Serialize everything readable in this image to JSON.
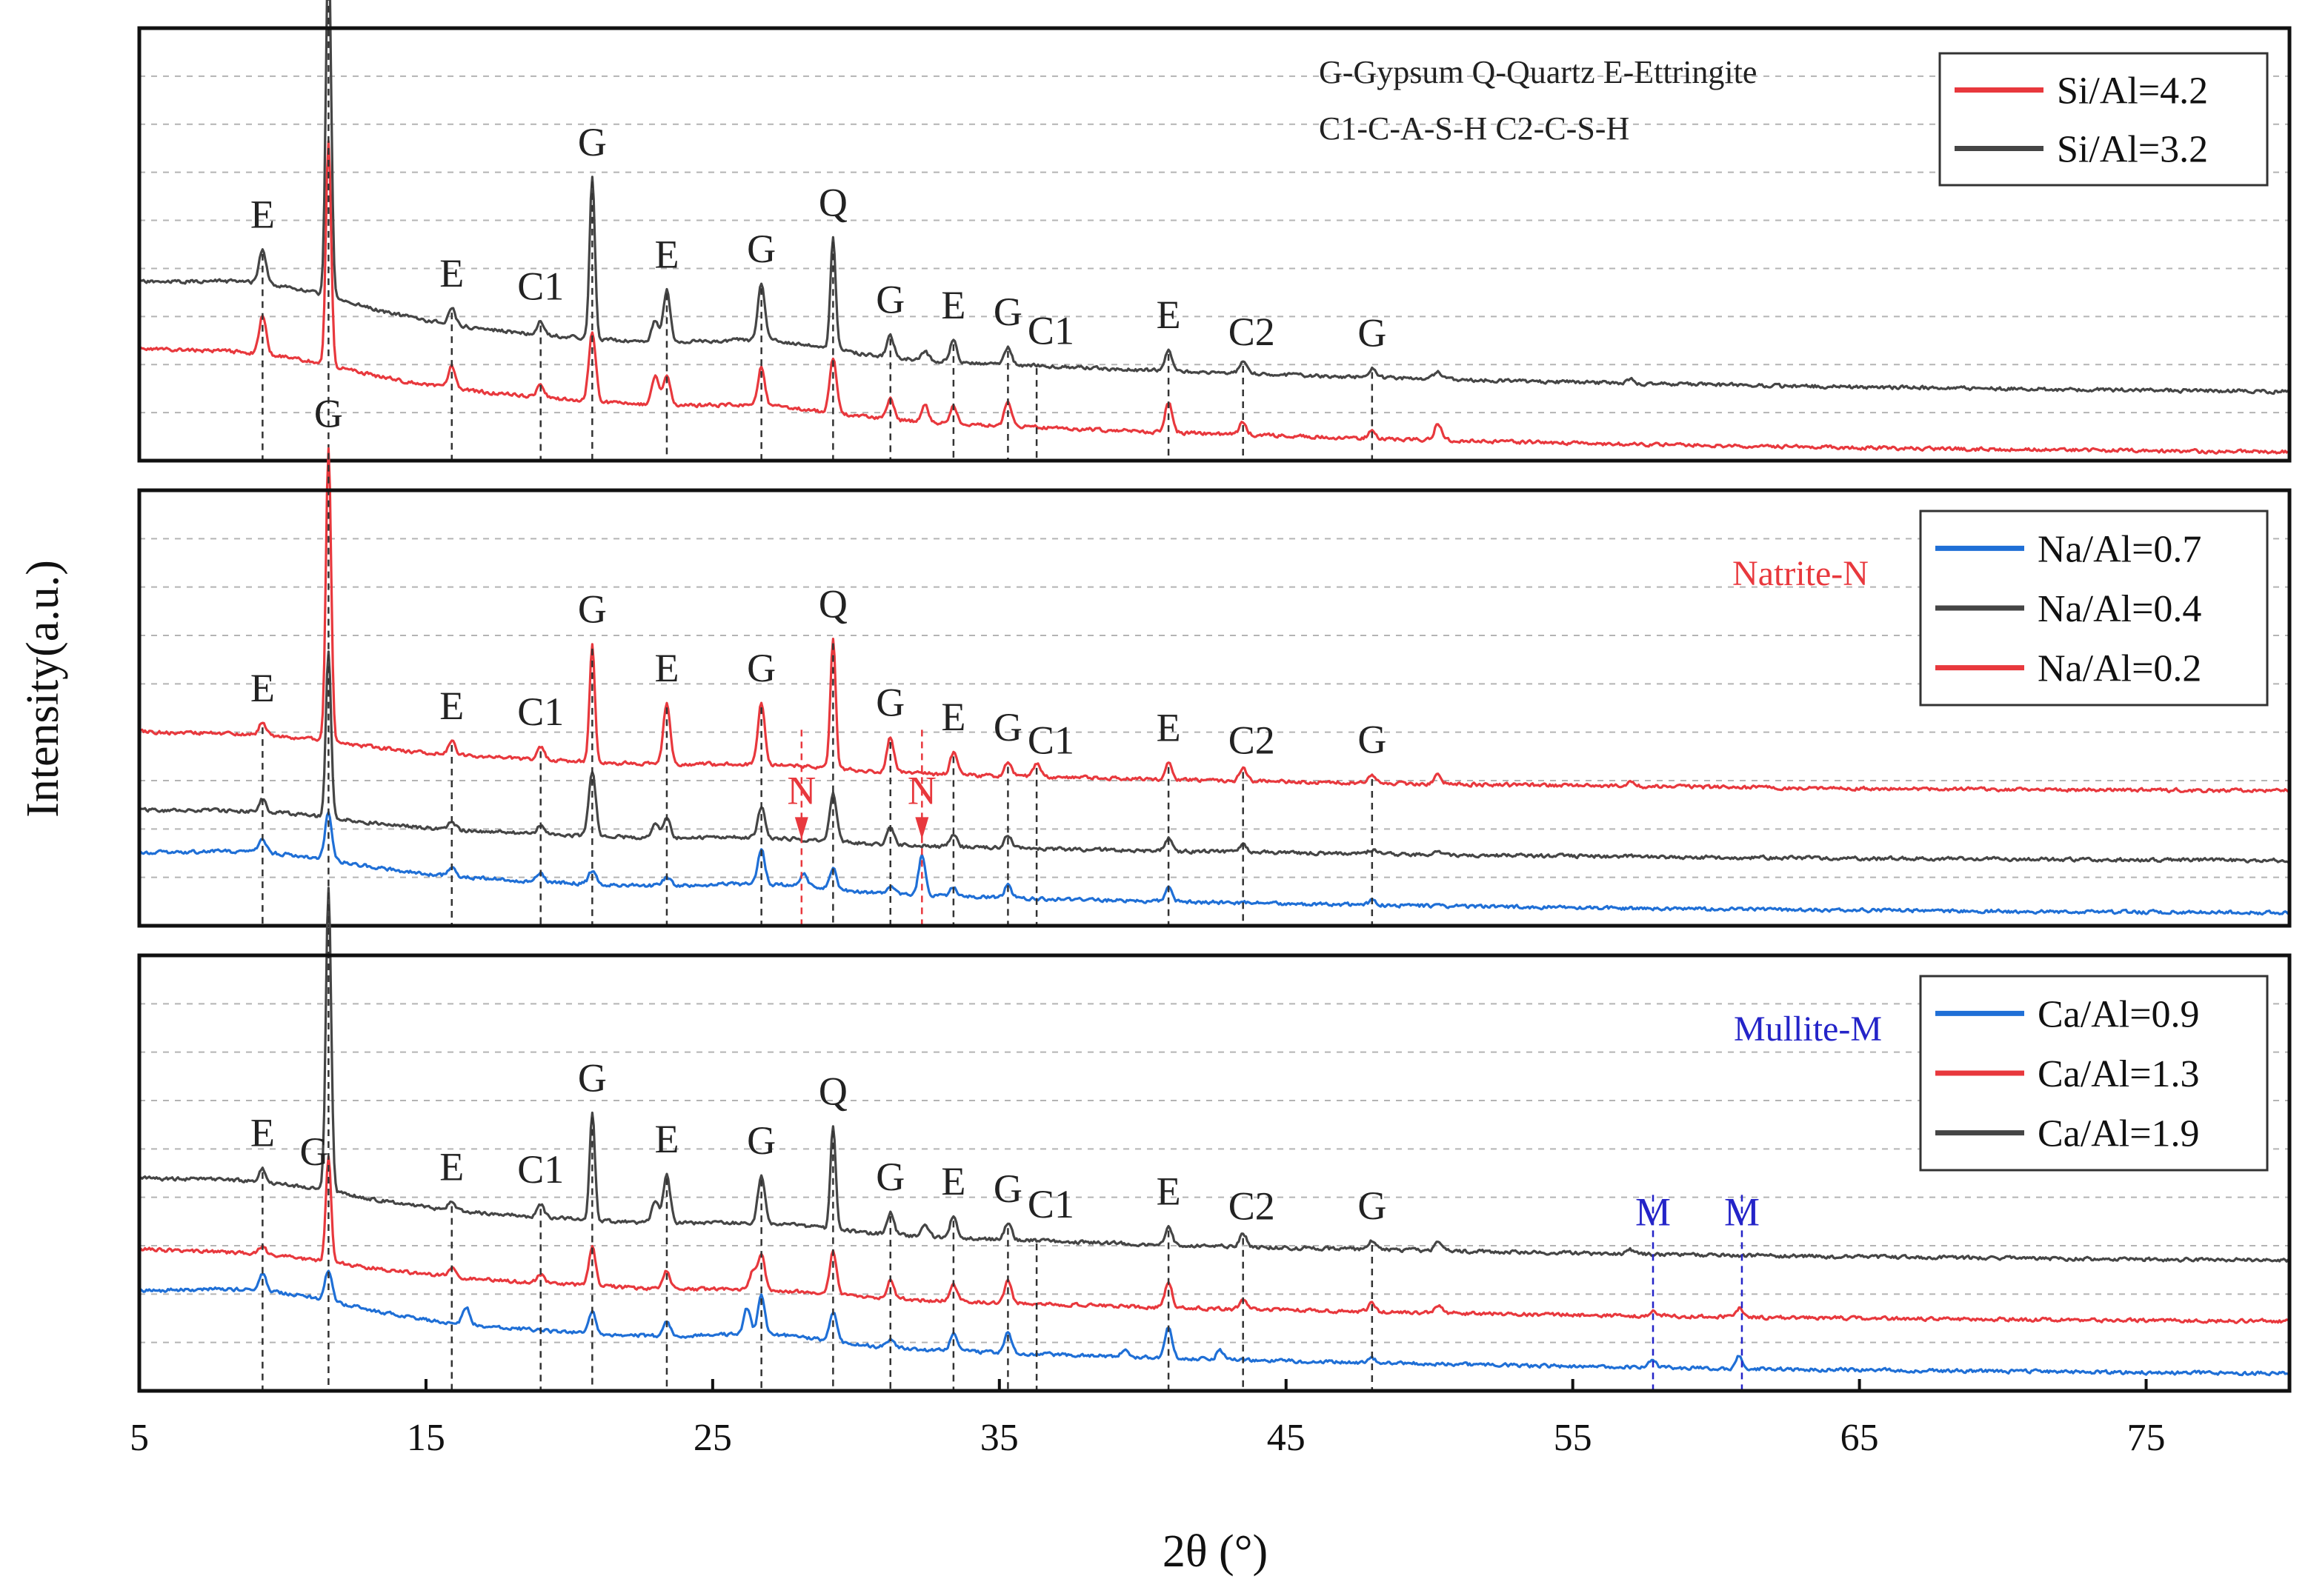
{
  "chart_data": {
    "type": "line",
    "x_axis": {
      "label": "2θ (°)",
      "range": [
        5,
        80
      ],
      "tick_labels": [
        "5",
        "15",
        "25",
        "35",
        "45",
        "55",
        "65",
        "75"
      ]
    },
    "y_axis_label": "Intensity(a.u.)",
    "colors": {
      "red": "#e8383d",
      "dark": "#454545",
      "blue": "#1f6fd6",
      "mullite": "#2424c8",
      "natrite": "#e8383d"
    },
    "panels": [
      {
        "id": "si-al",
        "notes": [
          "G-Gypsum Q-Quartz E-Ettringite",
          "C1-C-A-S-H C2-C-S-H"
        ],
        "legend": [
          {
            "label": "Si/Al=4.2",
            "color": "#e8383d"
          },
          {
            "label": "Si/Al=3.2",
            "color": "#454545"
          }
        ],
        "series": [
          {
            "name": "Si/Al=3.2",
            "color": "#454545",
            "start": 0.6,
            "end": 0.84,
            "hump": 0.05,
            "amp": 1.0,
            "seed": 11,
            "peaks": [
              [
                9.3,
                0.08
              ],
              [
                11.6,
                0.82
              ],
              [
                15.9,
                0.04
              ],
              [
                19.0,
                0.03
              ],
              [
                20.8,
                0.37
              ],
              [
                23.0,
                0.05
              ],
              [
                23.4,
                0.12
              ],
              [
                26.7,
                0.13
              ],
              [
                29.2,
                0.26
              ],
              [
                31.2,
                0.05
              ],
              [
                32.4,
                0.02
              ],
              [
                33.4,
                0.05
              ],
              [
                35.3,
                0.04
              ],
              [
                40.9,
                0.05
              ],
              [
                43.5,
                0.03
              ],
              [
                48.0,
                0.02
              ],
              [
                50.3,
                0.02
              ],
              [
                57.0,
                0.01
              ]
            ]
          },
          {
            "name": "Si/Al=4.2",
            "color": "#e8383d",
            "start": 0.75,
            "end": 0.98,
            "hump": 0.035,
            "amp": 1.0,
            "seed": 23,
            "peaks": [
              [
                9.3,
                0.09
              ],
              [
                11.6,
                0.52
              ],
              [
                15.9,
                0.05
              ],
              [
                19.0,
                0.03
              ],
              [
                20.8,
                0.16
              ],
              [
                23.0,
                0.07
              ],
              [
                23.4,
                0.07
              ],
              [
                26.7,
                0.09
              ],
              [
                29.2,
                0.13
              ],
              [
                31.2,
                0.05
              ],
              [
                32.4,
                0.04
              ],
              [
                33.4,
                0.04
              ],
              [
                35.3,
                0.06
              ],
              [
                40.9,
                0.07
              ],
              [
                43.5,
                0.03
              ],
              [
                48.0,
                0.02
              ],
              [
                50.3,
                0.04
              ]
            ]
          }
        ],
        "peak_labels": [
          {
            "text": "E",
            "x": 9.3
          },
          {
            "text": "G",
            "x": 11.6
          },
          {
            "text": "E",
            "x": 15.9
          },
          {
            "text": "C1",
            "x": 19.0
          },
          {
            "text": "G",
            "x": 20.8
          },
          {
            "text": "E",
            "x": 23.4
          },
          {
            "text": "G",
            "x": 26.7
          },
          {
            "text": "Q",
            "x": 29.2
          },
          {
            "text": "G",
            "x": 31.2
          },
          {
            "text": "E",
            "x": 33.4
          },
          {
            "text": "G",
            "x": 35.3
          },
          {
            "text": "C1",
            "x": 36.8
          },
          {
            "text": "E",
            "x": 40.9
          },
          {
            "text": "C2",
            "x": 43.8
          },
          {
            "text": "G",
            "x": 48.0
          }
        ],
        "ref_lines": [
          9.3,
          11.6,
          15.9,
          19.0,
          20.8,
          23.4,
          26.7,
          29.2,
          31.2,
          33.4,
          35.3,
          36.3,
          40.9,
          43.5,
          48.0
        ]
      },
      {
        "id": "na-al",
        "notes": [
          "Natrite-N"
        ],
        "legend": [
          {
            "label": "Na/Al=0.7",
            "color": "#1f6fd6"
          },
          {
            "label": "Na/Al=0.4",
            "color": "#454545"
          },
          {
            "label": "Na/Al=0.2",
            "color": "#e8383d"
          }
        ],
        "series": [
          {
            "name": "Na/Al=0.2",
            "color": "#e8383d",
            "start": 0.56,
            "end": 0.69,
            "hump": 0.02,
            "amp": 1.0,
            "seed": 31,
            "peaks": [
              [
                9.3,
                0.03
              ],
              [
                11.6,
                0.67
              ],
              [
                15.9,
                0.03
              ],
              [
                19.0,
                0.03
              ],
              [
                20.8,
                0.27
              ],
              [
                23.4,
                0.14
              ],
              [
                26.7,
                0.14
              ],
              [
                29.2,
                0.3
              ],
              [
                31.2,
                0.08
              ],
              [
                33.4,
                0.05
              ],
              [
                35.3,
                0.03
              ],
              [
                36.3,
                0.03
              ],
              [
                40.9,
                0.04
              ],
              [
                43.5,
                0.03
              ],
              [
                48.0,
                0.02
              ],
              [
                50.3,
                0.02
              ],
              [
                57.0,
                0.01
              ]
            ]
          },
          {
            "name": "Na/Al=0.4",
            "color": "#454545",
            "start": 0.74,
            "end": 0.85,
            "hump": 0.02,
            "amp": 1.0,
            "seed": 43,
            "peaks": [
              [
                9.3,
                0.03
              ],
              [
                11.6,
                0.38
              ],
              [
                15.9,
                0.02
              ],
              [
                19.0,
                0.02
              ],
              [
                20.8,
                0.15
              ],
              [
                23.0,
                0.03
              ],
              [
                23.4,
                0.05
              ],
              [
                26.7,
                0.07
              ],
              [
                29.2,
                0.11
              ],
              [
                31.2,
                0.04
              ],
              [
                33.4,
                0.03
              ],
              [
                35.3,
                0.03
              ],
              [
                40.9,
                0.03
              ],
              [
                43.5,
                0.02
              ],
              [
                48.0,
                0.01
              ],
              [
                50.3,
                0.01
              ]
            ]
          },
          {
            "name": "Na/Al=0.7",
            "color": "#1f6fd6",
            "start": 0.84,
            "end": 0.97,
            "hump": 0.03,
            "amp": 1.0,
            "seed": 57,
            "peaks": [
              [
                9.3,
                0.03
              ],
              [
                11.6,
                0.11
              ],
              [
                15.9,
                0.02
              ],
              [
                19.0,
                0.02
              ],
              [
                20.8,
                0.03
              ],
              [
                23.4,
                0.02
              ],
              [
                26.7,
                0.08
              ],
              [
                28.2,
                0.03
              ],
              [
                29.2,
                0.05
              ],
              [
                31.2,
                0.02
              ],
              [
                32.3,
                0.09
              ],
              [
                33.4,
                0.02
              ],
              [
                35.3,
                0.03
              ],
              [
                40.9,
                0.03
              ],
              [
                48.0,
                0.01
              ]
            ]
          }
        ],
        "peak_labels": [
          {
            "text": "E",
            "x": 9.3
          },
          {
            "text": "G",
            "x": 11.6
          },
          {
            "text": "E",
            "x": 15.9
          },
          {
            "text": "C1",
            "x": 19.0
          },
          {
            "text": "G",
            "x": 20.8
          },
          {
            "text": "E",
            "x": 23.4
          },
          {
            "text": "G",
            "x": 26.7
          },
          {
            "text": "Q",
            "x": 29.2
          },
          {
            "text": "G",
            "x": 31.2
          },
          {
            "text": "E",
            "x": 33.4
          },
          {
            "text": "G",
            "x": 35.3
          },
          {
            "text": "C1",
            "x": 36.8
          },
          {
            "text": "E",
            "x": 40.9
          },
          {
            "text": "C2",
            "x": 43.8
          },
          {
            "text": "G",
            "x": 48.0
          }
        ],
        "special_labels": [
          {
            "text": "N",
            "x": 28.1,
            "color": "#e8383d"
          },
          {
            "text": "N",
            "x": 32.3,
            "color": "#e8383d"
          }
        ],
        "ref_lines": [
          9.3,
          11.6,
          15.9,
          19.0,
          20.8,
          23.4,
          26.7,
          29.2,
          31.2,
          33.4,
          35.3,
          36.3,
          40.9,
          43.5,
          48.0
        ],
        "special_ref_lines": [
          28.1,
          32.3
        ]
      },
      {
        "id": "ca-al",
        "notes": [
          "Mullite-M"
        ],
        "legend": [
          {
            "label": "Ca/Al=0.9",
            "color": "#1f6fd6"
          },
          {
            "label": "Ca/Al=1.3",
            "color": "#e8383d"
          },
          {
            "label": "Ca/Al=1.9",
            "color": "#454545"
          }
        ],
        "series": [
          {
            "name": "Ca/Al=1.9",
            "color": "#454545",
            "start": 0.52,
            "end": 0.7,
            "hump": 0.03,
            "amp": 1.0,
            "seed": 67,
            "peaks": [
              [
                9.3,
                0.03
              ],
              [
                11.6,
                0.7
              ],
              [
                15.9,
                0.02
              ],
              [
                19.0,
                0.03
              ],
              [
                20.8,
                0.25
              ],
              [
                23.0,
                0.05
              ],
              [
                23.4,
                0.11
              ],
              [
                26.7,
                0.11
              ],
              [
                29.2,
                0.24
              ],
              [
                31.2,
                0.05
              ],
              [
                32.4,
                0.03
              ],
              [
                33.4,
                0.05
              ],
              [
                35.3,
                0.04
              ],
              [
                40.9,
                0.04
              ],
              [
                43.5,
                0.03
              ],
              [
                48.0,
                0.02
              ],
              [
                50.3,
                0.02
              ],
              [
                57.0,
                0.01
              ]
            ]
          },
          {
            "name": "Ca/Al=1.3",
            "color": "#e8383d",
            "start": 0.68,
            "end": 0.84,
            "hump": 0.02,
            "amp": 1.0,
            "seed": 79,
            "peaks": [
              [
                9.3,
                0.02
              ],
              [
                11.6,
                0.24
              ],
              [
                15.9,
                0.02
              ],
              [
                19.0,
                0.02
              ],
              [
                20.8,
                0.09
              ],
              [
                23.4,
                0.04
              ],
              [
                26.4,
                0.04
              ],
              [
                26.7,
                0.08
              ],
              [
                29.2,
                0.1
              ],
              [
                31.2,
                0.04
              ],
              [
                33.4,
                0.04
              ],
              [
                35.3,
                0.05
              ],
              [
                40.9,
                0.06
              ],
              [
                43.5,
                0.02
              ],
              [
                48.0,
                0.02
              ],
              [
                50.3,
                0.02
              ],
              [
                57.8,
                0.01
              ],
              [
                60.8,
                0.02
              ]
            ]
          },
          {
            "name": "Ca/Al=0.9",
            "color": "#1f6fd6",
            "start": 0.78,
            "end": 0.96,
            "hump": 0.04,
            "amp": 1.0,
            "seed": 89,
            "peaks": [
              [
                9.3,
                0.04
              ],
              [
                11.6,
                0.07
              ],
              [
                16.4,
                0.04
              ],
              [
                20.8,
                0.05
              ],
              [
                23.4,
                0.03
              ],
              [
                26.2,
                0.06
              ],
              [
                26.7,
                0.09
              ],
              [
                29.2,
                0.07
              ],
              [
                31.2,
                0.02
              ],
              [
                33.4,
                0.04
              ],
              [
                35.3,
                0.05
              ],
              [
                39.4,
                0.02
              ],
              [
                40.9,
                0.07
              ],
              [
                42.7,
                0.02
              ],
              [
                48.0,
                0.01
              ],
              [
                57.8,
                0.02
              ],
              [
                60.8,
                0.03
              ]
            ]
          }
        ],
        "peak_labels": [
          {
            "text": "E",
            "x": 9.3
          },
          {
            "text": "G",
            "x": 11.1
          },
          {
            "text": "E",
            "x": 15.9
          },
          {
            "text": "C1",
            "x": 19.0
          },
          {
            "text": "G",
            "x": 20.8
          },
          {
            "text": "E",
            "x": 23.4
          },
          {
            "text": "G",
            "x": 26.7
          },
          {
            "text": "Q",
            "x": 29.2
          },
          {
            "text": "G",
            "x": 31.2
          },
          {
            "text": "E",
            "x": 33.4
          },
          {
            "text": "G",
            "x": 35.3
          },
          {
            "text": "C1",
            "x": 36.8
          },
          {
            "text": "E",
            "x": 40.9
          },
          {
            "text": "C2",
            "x": 43.8
          },
          {
            "text": "G",
            "x": 48.0
          }
        ],
        "special_labels": [
          {
            "text": "M",
            "x": 57.8,
            "color": "#2424c8"
          },
          {
            "text": "M",
            "x": 60.9,
            "color": "#2424c8"
          }
        ],
        "ref_lines": [
          9.3,
          11.6,
          15.9,
          19.0,
          20.8,
          23.4,
          26.7,
          29.2,
          31.2,
          33.4,
          35.3,
          36.3,
          40.9,
          43.5,
          48.0
        ],
        "special_ref_lines": [
          57.8,
          60.9
        ]
      }
    ]
  }
}
